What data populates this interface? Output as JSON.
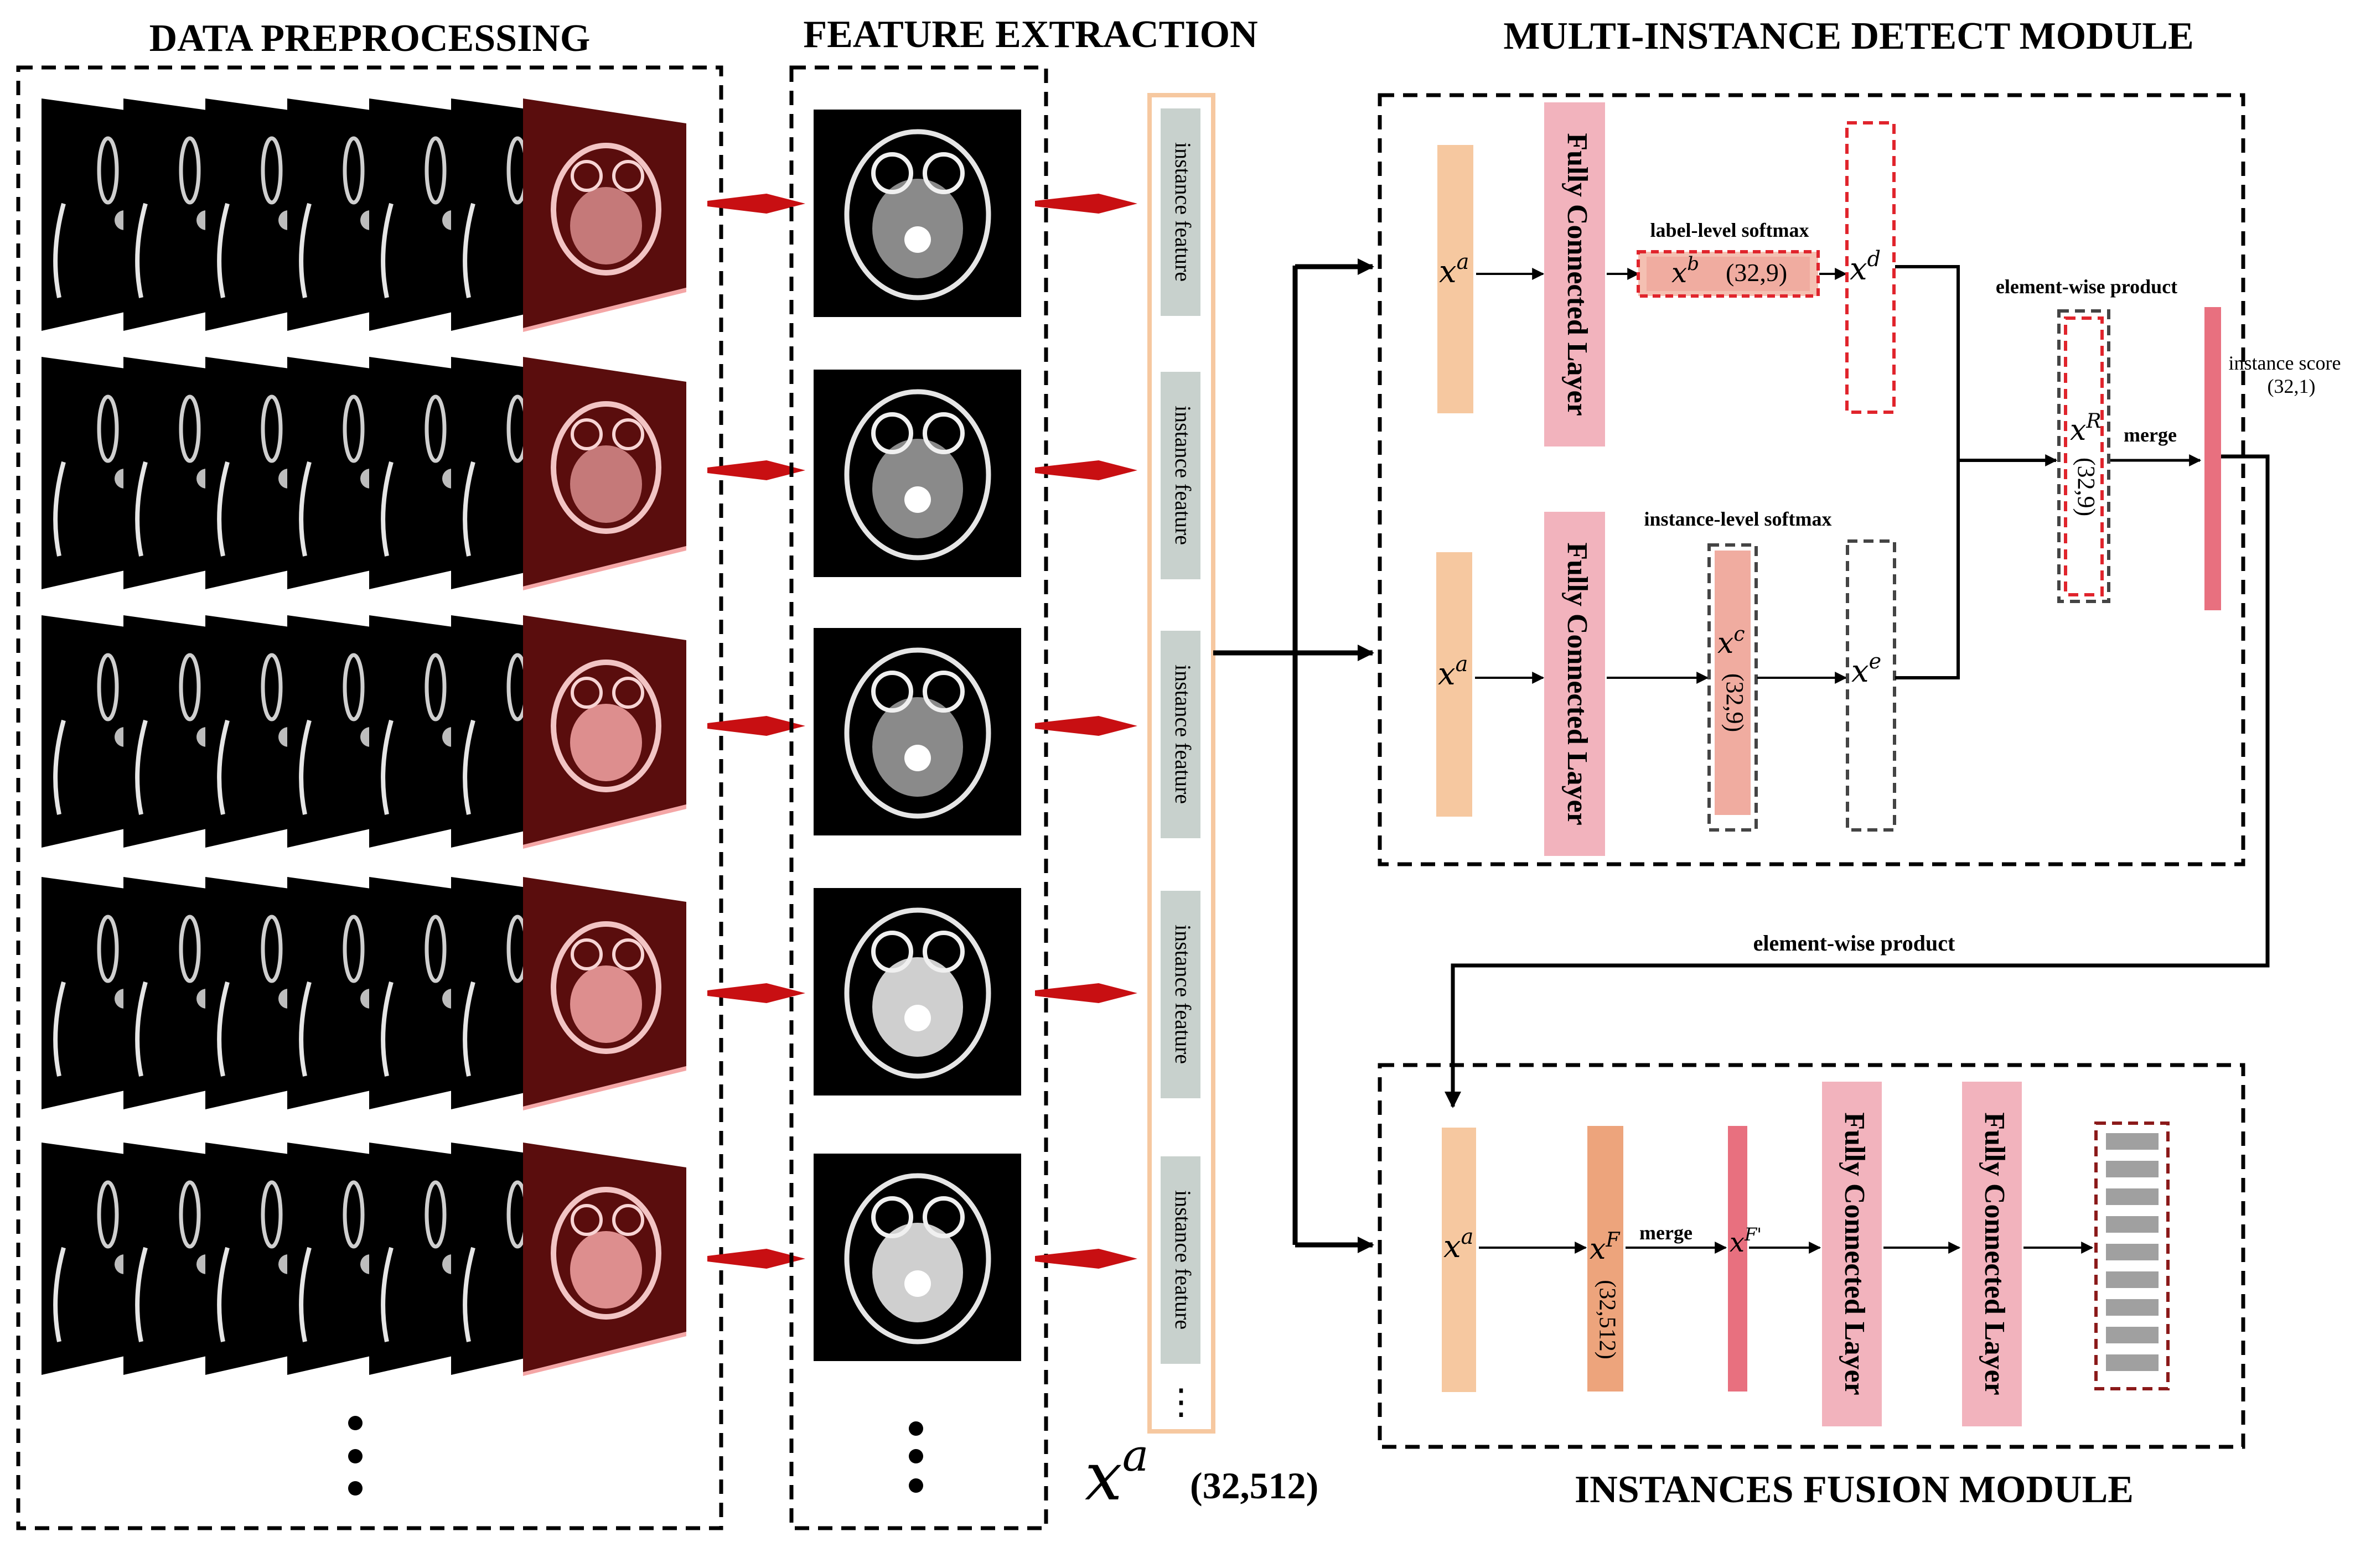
{
  "sections": {
    "data_preprocessing": "DATA PREPROCESSING",
    "feature_extraction": "FEATURE EXTRACTION",
    "detect_module": "MULTI-INSTANCE DETECT MODULE",
    "fusion_module": "INSTANCES FUSION MODULE"
  },
  "feature_column": {
    "items": [
      "instance feature",
      "instance feature",
      "instance feature",
      "instance feature",
      "instance feature"
    ],
    "more": "⋮",
    "caption_symbol": "x",
    "caption_sup": "a",
    "caption_shape": "(32,512)"
  },
  "detect": {
    "xa": "x",
    "xa_sup": "a",
    "fc_top": "Fully Connected Layer",
    "fc_bottom": "Fully Connected Layer",
    "label_softmax": "label-level softmax",
    "xb": "x",
    "xb_sup": "b",
    "xb_shape": "(32,9)",
    "xd": "x",
    "xd_sup": "d",
    "instance_softmax": "instance-level softmax",
    "xc": "x",
    "xc_sup": "c",
    "xc_shape": "(32,9)",
    "xe": "x",
    "xe_sup": "e",
    "ewp": "element-wise product",
    "xr": "x",
    "xr_sup": "R",
    "xr_shape": "(32,9)",
    "merge": "merge",
    "score": "instance score",
    "score_shape": "(32,1)"
  },
  "link": {
    "ewp": "element-wise product"
  },
  "fusion": {
    "xa": "x",
    "xa_sup": "a",
    "xf": "x",
    "xf_sup": "F",
    "xf_shape": "(32,512)",
    "merge": "merge",
    "xfp": "x",
    "xfp_sup": "F'",
    "fc1": "Fully Connected Layer",
    "fc2": "Fully Connected Layer"
  },
  "colors": {
    "peach": "#f6c8a0",
    "fc_pink": "#f2b3bd",
    "salmon": "#f0b0a6",
    "orange": "#eda47c",
    "score_pink": "#e8707f",
    "red_dash": "#e0242c",
    "gray_dash": "#444444",
    "feature_gray": "#c8d1cd",
    "arrow_red": "#c80f12",
    "slice_red": "#5a0d0d"
  }
}
